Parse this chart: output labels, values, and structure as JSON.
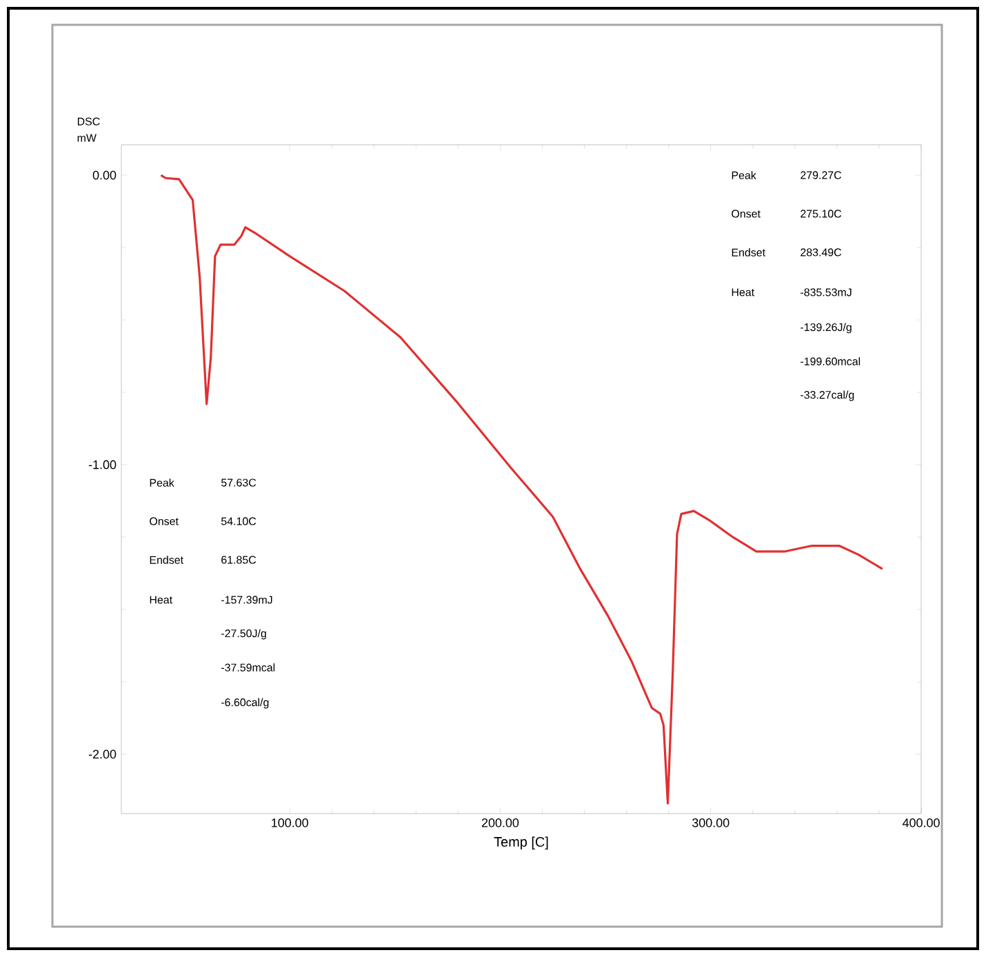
{
  "chart_data": {
    "type": "line",
    "xlabel": "Temp  [C]",
    "ylabel": "DSC mW",
    "xlim": [
      20,
      400
    ],
    "ylim": [
      -2.205,
      0.105
    ],
    "xticks": [
      {
        "value": 100,
        "label": "100.00"
      },
      {
        "value": 200,
        "label": "200.00"
      },
      {
        "value": 300,
        "label": "300.00"
      },
      {
        "value": 400,
        "label": "400.00"
      }
    ],
    "yticks": [
      {
        "value": 0,
        "label": "0.00"
      },
      {
        "value": -1,
        "label": "-1.00"
      },
      {
        "value": -2,
        "label": "-2.00"
      }
    ],
    "series": [
      {
        "color": "#e03030",
        "x": [
          38.8,
          41,
          47.4,
          53.9,
          57.2,
          60.5,
          62.5,
          64.5,
          67.1,
          73.7,
          77,
          78.9,
          83.6,
          100,
          126,
          152.6,
          179,
          205,
          225,
          238,
          251,
          262.5,
          272,
          276,
          277.6,
          279.6,
          282,
          284,
          286,
          292,
          299,
          310.5,
          321.7,
          335,
          348,
          361,
          370,
          381.6
        ],
        "values": [
          0.0,
          -0.01,
          -0.014,
          -0.086,
          -0.35,
          -0.79,
          -0.63,
          -0.28,
          -0.24,
          -0.24,
          -0.21,
          -0.18,
          -0.2,
          -0.28,
          -0.4,
          -0.56,
          -0.78,
          -1.01,
          -1.18,
          -1.36,
          -1.52,
          -1.68,
          -1.84,
          -1.86,
          -1.9,
          -2.17,
          -1.71,
          -1.24,
          -1.17,
          -1.16,
          -1.19,
          -1.25,
          -1.3,
          -1.3,
          -1.28,
          -1.28,
          -1.31,
          -1.36
        ]
      }
    ],
    "annotations": [
      "Peak",
      "Onset",
      "Endset",
      "Heat",
      "279.27C",
      "275.10C",
      "283.49C",
      "-835.53mJ",
      "-139.26J/g",
      "-199.60mcal",
      "-33.27cal/g",
      "Peak",
      "Onset",
      "Endset",
      "Heat",
      "57.63C",
      "54.10C",
      "61.85C",
      "-157.39mJ",
      "-27.50J/g",
      "-37.59mcal",
      "-6.60cal/g"
    ],
    "marker": "none",
    "line_style": "solid"
  }
}
